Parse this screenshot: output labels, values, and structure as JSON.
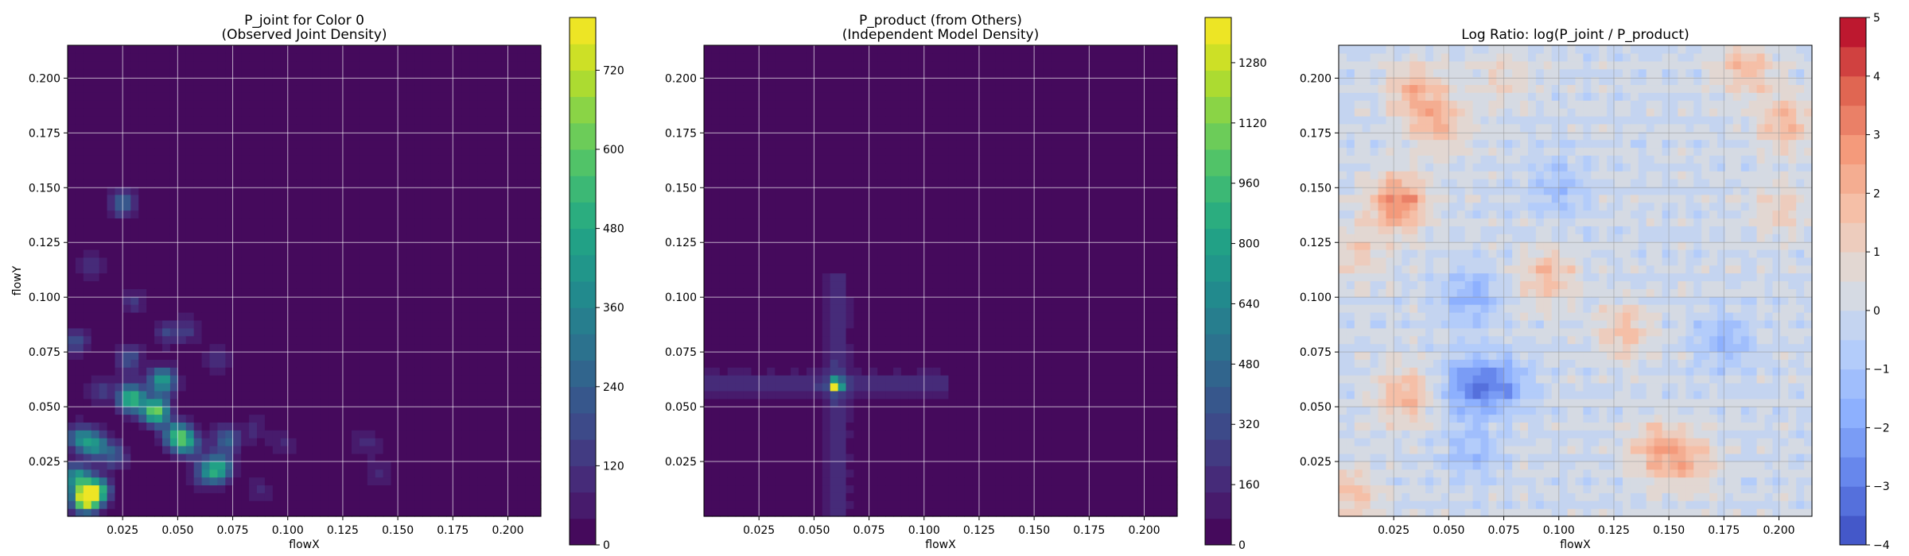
{
  "chart_data": [
    {
      "type": "heatmap",
      "title": "P_joint for Color 0\n(Observed Joint Density)",
      "xlabel": "flowX",
      "ylabel": "flowY",
      "xlim": [
        0.0,
        0.215
      ],
      "ylim": [
        0.0,
        0.215
      ],
      "xticks": [
        "0.025",
        "0.050",
        "0.075",
        "0.100",
        "0.125",
        "0.150",
        "0.175",
        "0.200"
      ],
      "yticks": [
        "0.025",
        "0.050",
        "0.075",
        "0.100",
        "0.125",
        "0.150",
        "0.175",
        "0.200"
      ],
      "grid": true,
      "colormap": "viridis",
      "colorbar": {
        "range": [
          0,
          800
        ],
        "ticks": [
          "0",
          "120",
          "240",
          "360",
          "480",
          "600",
          "720"
        ],
        "levels": 20
      },
      "hotspots": [
        {
          "x": 0.008,
          "y": 0.008,
          "value": 780
        },
        {
          "x": 0.013,
          "y": 0.012,
          "value": 560
        },
        {
          "x": 0.004,
          "y": 0.018,
          "value": 420
        },
        {
          "x": 0.012,
          "y": 0.033,
          "value": 380
        },
        {
          "x": 0.005,
          "y": 0.036,
          "value": 300
        },
        {
          "x": 0.029,
          "y": 0.054,
          "value": 560
        },
        {
          "x": 0.04,
          "y": 0.048,
          "value": 640
        },
        {
          "x": 0.043,
          "y": 0.062,
          "value": 460
        },
        {
          "x": 0.05,
          "y": 0.037,
          "value": 500
        },
        {
          "x": 0.055,
          "y": 0.033,
          "value": 300
        },
        {
          "x": 0.069,
          "y": 0.022,
          "value": 420
        },
        {
          "x": 0.072,
          "y": 0.035,
          "value": 260
        },
        {
          "x": 0.063,
          "y": 0.02,
          "value": 260
        },
        {
          "x": 0.025,
          "y": 0.143,
          "value": 260
        },
        {
          "x": 0.021,
          "y": 0.028,
          "value": 220
        },
        {
          "x": 0.028,
          "y": 0.072,
          "value": 200
        },
        {
          "x": 0.045,
          "y": 0.084,
          "value": 150
        },
        {
          "x": 0.055,
          "y": 0.085,
          "value": 120
        },
        {
          "x": 0.004,
          "y": 0.08,
          "value": 180
        },
        {
          "x": 0.01,
          "y": 0.115,
          "value": 120
        },
        {
          "x": 0.03,
          "y": 0.098,
          "value": 120
        },
        {
          "x": 0.068,
          "y": 0.072,
          "value": 100
        },
        {
          "x": 0.085,
          "y": 0.04,
          "value": 90
        },
        {
          "x": 0.098,
          "y": 0.033,
          "value": 90
        },
        {
          "x": 0.087,
          "y": 0.012,
          "value": 90
        },
        {
          "x": 0.136,
          "y": 0.034,
          "value": 110
        },
        {
          "x": 0.142,
          "y": 0.02,
          "value": 90
        },
        {
          "x": 0.015,
          "y": 0.058,
          "value": 140
        }
      ]
    },
    {
      "type": "heatmap",
      "title": "P_product (from Others)\n(Independent Model Density)",
      "xlabel": "flowX",
      "ylabel": "",
      "xlim": [
        0.0,
        0.215
      ],
      "ylim": [
        0.0,
        0.215
      ],
      "xticks": [
        "0.025",
        "0.050",
        "0.075",
        "0.100",
        "0.125",
        "0.150",
        "0.175",
        "0.200"
      ],
      "yticks": [
        "0.025",
        "0.050",
        "0.075",
        "0.100",
        "0.125",
        "0.150",
        "0.175",
        "0.200"
      ],
      "grid": true,
      "colormap": "viridis",
      "colorbar": {
        "range": [
          0,
          1400
        ],
        "ticks": [
          "0",
          "160",
          "320",
          "480",
          "640",
          "800",
          "960",
          "1120",
          "1280"
        ],
        "levels": 20
      },
      "peak": {
        "x": 0.06,
        "y": 0.06,
        "value": 1350
      },
      "x_marginal_peaks": [
        0.004,
        0.013,
        0.02,
        0.03,
        0.04,
        0.05,
        0.06,
        0.068,
        0.078,
        0.088,
        0.098,
        0.105
      ],
      "y_marginal_peaks": [
        0.004,
        0.012,
        0.021,
        0.028,
        0.038,
        0.046,
        0.053,
        0.06,
        0.067,
        0.072,
        0.078,
        0.086,
        0.093,
        0.1
      ]
    },
    {
      "type": "heatmap",
      "title": "Log Ratio: log(P_joint / P_product)",
      "xlabel": "flowX",
      "ylabel": "",
      "xlim": [
        0.0,
        0.215
      ],
      "ylim": [
        0.0,
        0.215
      ],
      "xticks": [
        "0.025",
        "0.050",
        "0.075",
        "0.100",
        "0.125",
        "0.150",
        "0.175",
        "0.200"
      ],
      "yticks": [
        "0.025",
        "0.050",
        "0.075",
        "0.100",
        "0.125",
        "0.150",
        "0.175",
        "0.200"
      ],
      "grid": true,
      "colormap": "coolwarm",
      "colorbar": {
        "range": [
          -4,
          5
        ],
        "ticks": [
          "−4",
          "−3",
          "−2",
          "−1",
          "0",
          "1",
          "2",
          "3",
          "4",
          "5"
        ],
        "levels": 18
      },
      "hotspots": [
        {
          "x": 0.027,
          "y": 0.143,
          "value": 3.2
        },
        {
          "x": 0.045,
          "y": 0.18,
          "value": 2.0
        },
        {
          "x": 0.034,
          "y": 0.195,
          "value": 1.8
        },
        {
          "x": 0.03,
          "y": 0.055,
          "value": 2.0
        },
        {
          "x": 0.095,
          "y": 0.11,
          "value": 1.8
        },
        {
          "x": 0.13,
          "y": 0.085,
          "value": 1.6
        },
        {
          "x": 0.145,
          "y": 0.03,
          "value": 2.0
        },
        {
          "x": 0.16,
          "y": 0.025,
          "value": 1.6
        },
        {
          "x": 0.185,
          "y": 0.205,
          "value": 1.8
        },
        {
          "x": 0.203,
          "y": 0.18,
          "value": 1.8
        },
        {
          "x": 0.2,
          "y": 0.14,
          "value": 1.2
        },
        {
          "x": 0.006,
          "y": 0.01,
          "value": 1.6
        },
        {
          "x": 0.008,
          "y": 0.12,
          "value": 1.2
        },
        {
          "x": 0.075,
          "y": 0.2,
          "value": 1.0
        },
        {
          "x": 0.06,
          "y": 0.06,
          "value": -2.5
        },
        {
          "x": 0.06,
          "y": 0.1,
          "value": -1.6
        },
        {
          "x": 0.075,
          "y": 0.06,
          "value": -1.8
        },
        {
          "x": 0.175,
          "y": 0.08,
          "value": -1.5
        },
        {
          "x": 0.1,
          "y": 0.15,
          "value": -1.2
        },
        {
          "x": 0.06,
          "y": 0.03,
          "value": -1.3
        }
      ]
    }
  ]
}
